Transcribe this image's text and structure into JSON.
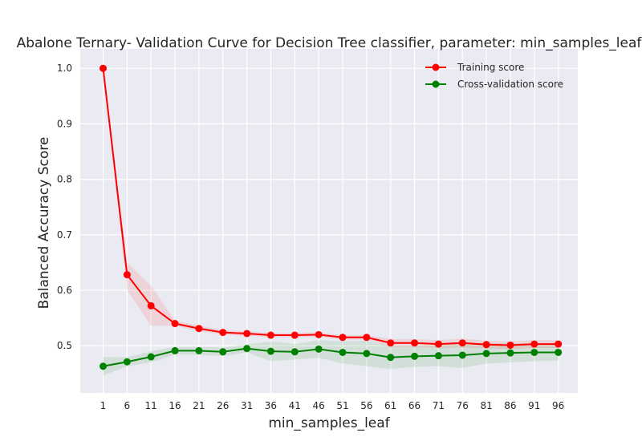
{
  "chart_data": {
    "type": "line",
    "title": "Abalone Ternary- Validation Curve for Decision Tree classifier, parameter: min_samples_leaf",
    "xlabel": "min_samples_leaf",
    "ylabel": "Balanced Accuracy Score",
    "categories": [
      "1",
      "6",
      "11",
      "16",
      "21",
      "26",
      "31",
      "36",
      "41",
      "46",
      "51",
      "56",
      "61",
      "66",
      "71",
      "76",
      "81",
      "86",
      "91",
      "96"
    ],
    "x": [
      1,
      6,
      11,
      16,
      21,
      26,
      31,
      36,
      41,
      46,
      51,
      56,
      61,
      66,
      71,
      76,
      81,
      86,
      91,
      96
    ],
    "ylim": [
      0.415,
      1.035
    ],
    "yticks": [
      0.5,
      0.6,
      0.7,
      0.8,
      0.9,
      1.0
    ],
    "ytick_labels": [
      "0.5",
      "0.6",
      "0.7",
      "0.8",
      "0.9",
      "1.0"
    ],
    "grid": true,
    "legend_position": "top-right",
    "series": [
      {
        "name": "Training score",
        "color": "#ff0000",
        "values": [
          1.0,
          0.628,
          0.572,
          0.54,
          0.531,
          0.524,
          0.522,
          0.519,
          0.519,
          0.52,
          0.515,
          0.515,
          0.505,
          0.505,
          0.503,
          0.505,
          0.502,
          0.501,
          0.503,
          0.503
        ],
        "band_lower": [
          1.0,
          0.6,
          0.536,
          0.536,
          0.526,
          0.52,
          0.518,
          0.515,
          0.515,
          0.516,
          0.511,
          0.511,
          0.498,
          0.498,
          0.496,
          0.497,
          0.495,
          0.494,
          0.496,
          0.496
        ],
        "band_upper": [
          1.0,
          0.65,
          0.608,
          0.545,
          0.536,
          0.528,
          0.526,
          0.523,
          0.523,
          0.524,
          0.519,
          0.519,
          0.512,
          0.512,
          0.51,
          0.513,
          0.509,
          0.508,
          0.51,
          0.51
        ]
      },
      {
        "name": "Cross-validation score",
        "color": "#008000",
        "values": [
          0.463,
          0.471,
          0.48,
          0.491,
          0.491,
          0.489,
          0.495,
          0.49,
          0.489,
          0.494,
          0.488,
          0.486,
          0.479,
          0.481,
          0.482,
          0.483,
          0.486,
          0.487,
          0.488,
          0.488
        ],
        "band_lower": [
          0.446,
          0.463,
          0.47,
          0.484,
          0.484,
          0.481,
          0.488,
          0.472,
          0.475,
          0.478,
          0.468,
          0.463,
          0.458,
          0.462,
          0.463,
          0.46,
          0.468,
          0.47,
          0.472,
          0.473
        ],
        "band_upper": [
          0.48,
          0.479,
          0.49,
          0.498,
          0.498,
          0.497,
          0.502,
          0.508,
          0.503,
          0.51,
          0.508,
          0.509,
          0.5,
          0.5,
          0.501,
          0.506,
          0.504,
          0.504,
          0.504,
          0.503
        ]
      }
    ]
  }
}
